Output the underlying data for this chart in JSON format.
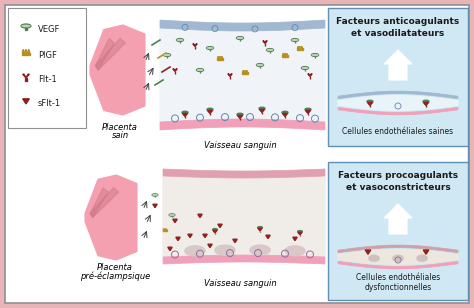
{
  "bg_color": "#e8b4b8",
  "main_bg": "#ffffff",
  "blue_box_color": "#d0e8f4",
  "blue_box_border": "#6090b0",
  "legend_box_border": "#909090",
  "placenta_color": "#f4a0b0",
  "placenta_dark": "#c87080",
  "vessel_blue_color": "#a0b8d0",
  "vessel_pink_color": "#f0a0b8",
  "vessel_inner_color": "#f8f8f8",
  "green_color": "#508050",
  "yellow_color": "#b89020",
  "dark_red_color": "#902020",
  "text_color": "#202020",
  "fontsize_title": 6.5,
  "fontsize_label": 6.0,
  "fontsize_small": 5.5,
  "top_right_title1": "Facteurs anticoagulants",
  "top_right_title2": "et vasodilatateurs",
  "top_right_label": "Cellules endothéliales saines",
  "bot_right_title1": "Facteurs procoagulants",
  "bot_right_title2": "et vasoconstricteurs",
  "bot_right_label1": "Cellules endothéliales",
  "bot_right_label2": "dysfonctionnelles",
  "top_left_label1": "Placenta",
  "top_left_label2": "sain",
  "bot_left_label1": "Placenta",
  "bot_left_label2": "pré-éclampsique",
  "vaisseau_label": "Vaisseau sanguin",
  "legend_vegf": "VEGF",
  "legend_pigf": "PlGF",
  "legend_flt1": "Flt-1",
  "legend_sflt1": "sFlt-1"
}
